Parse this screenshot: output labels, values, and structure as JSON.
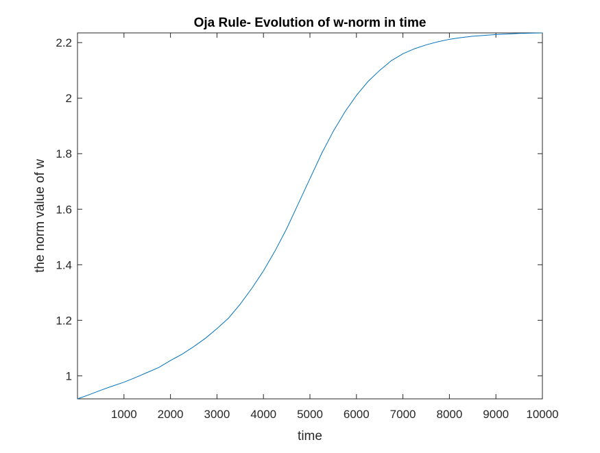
{
  "chart_data": {
    "type": "line",
    "title": "Oja Rule- Evolution of w-norm in time",
    "xlabel": "time",
    "ylabel": "the norm value of w",
    "xlim": [
      0,
      10000
    ],
    "ylim": [
      0.917,
      2.235
    ],
    "x_ticks": [
      1000,
      2000,
      3000,
      4000,
      5000,
      6000,
      7000,
      8000,
      9000,
      10000
    ],
    "y_ticks": [
      1,
      1.2,
      1.4,
      1.6,
      1.8,
      2,
      2.2
    ],
    "x_tick_labels": [
      "1000",
      "2000",
      "3000",
      "4000",
      "5000",
      "6000",
      "7000",
      "8000",
      "9000",
      "10000"
    ],
    "y_tick_labels": [
      "1",
      "1.2",
      "1.4",
      "1.6",
      "1.8",
      "2",
      "2.2"
    ],
    "grid": false,
    "series": [
      {
        "color": "#0072bd",
        "x": [
          0,
          250,
          500,
          750,
          1000,
          1250,
          1500,
          1750,
          2000,
          2250,
          2500,
          2750,
          3000,
          3250,
          3500,
          3750,
          4000,
          4250,
          4500,
          4750,
          5000,
          5250,
          5500,
          5750,
          6000,
          6250,
          6500,
          6750,
          7000,
          7250,
          7500,
          7750,
          8000,
          8250,
          8500,
          8750,
          9000,
          9250,
          9500,
          9750,
          10000
        ],
        "y": [
          0.917,
          0.932,
          0.948,
          0.963,
          0.977,
          0.994,
          1.012,
          1.03,
          1.055,
          1.078,
          1.105,
          1.135,
          1.17,
          1.208,
          1.258,
          1.315,
          1.378,
          1.45,
          1.53,
          1.62,
          1.71,
          1.8,
          1.88,
          1.95,
          2.01,
          2.06,
          2.1,
          2.135,
          2.16,
          2.178,
          2.192,
          2.203,
          2.212,
          2.218,
          2.223,
          2.226,
          2.229,
          2.231,
          2.233,
          2.234,
          2.235
        ]
      }
    ]
  }
}
